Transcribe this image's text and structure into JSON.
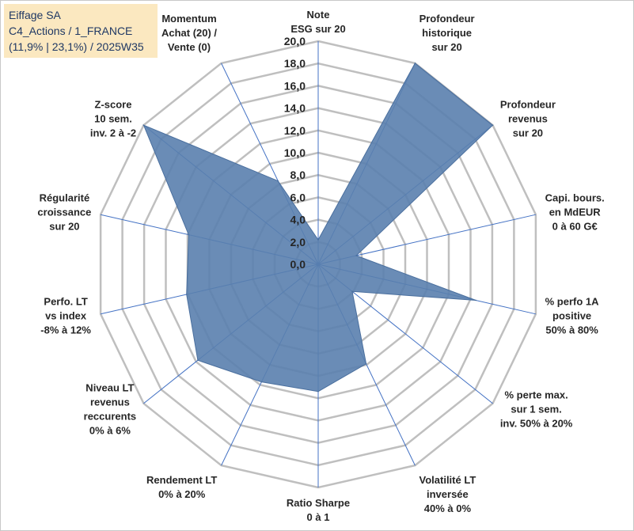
{
  "header": {
    "line1": "Eiffage SA",
    "line2": "C4_Actions / 1_FRANCE",
    "line3": "(11,9% | 23,1%) / 2025W35"
  },
  "chart_data": {
    "type": "radar",
    "rmin": 0,
    "rmax": 20,
    "tick_step": 2,
    "tick_labels": [
      "0,0",
      "2,0",
      "4,0",
      "6,0",
      "8,0",
      "10,0",
      "12,0",
      "14,0",
      "16,0",
      "18,0",
      "20,0"
    ],
    "grid": true,
    "colors": {
      "fill": "#5a7fae",
      "stroke": "#4a6f9e",
      "grid": "#bfbfbf",
      "spoke": "#4472c4"
    },
    "axes": [
      {
        "label": [
          "Note",
          "ESG sur 20"
        ],
        "value": 2.2
      },
      {
        "label": [
          "Profondeur",
          "historique",
          "sur 20"
        ],
        "value": 20.0
      },
      {
        "label": [
          "Profondeur",
          "revenus",
          "sur 20"
        ],
        "value": 20.0
      },
      {
        "label": [
          "Capi. bours.",
          "en MdEUR",
          "0 à 60 G€"
        ],
        "value": 3.5
      },
      {
        "label": [
          "% perfo 1A",
          "positive",
          "50% à 80%"
        ],
        "value": 14.5
      },
      {
        "label": [
          "% perte max.",
          "sur 1 sem.",
          "inv. 50% à 20%"
        ],
        "value": 3.9
      },
      {
        "label": [
          "Volatilité LT",
          "inversée",
          "40% à 0%"
        ],
        "value": 9.9
      },
      {
        "label": [
          "Ratio Sharpe",
          "0 à 1"
        ],
        "value": 11.4
      },
      {
        "label": [
          "Rendement LT",
          "0% à 20%"
        ],
        "value": 11.7
      },
      {
        "label": [
          "Niveau LT",
          "revenus",
          "reccurents",
          "0% à 6%"
        ],
        "value": 13.8
      },
      {
        "label": [
          "Perfo. LT",
          "vs index",
          "-8% à 12%"
        ],
        "value": 12.1
      },
      {
        "label": [
          "Régularité",
          "croissance",
          "sur 20"
        ],
        "value": 11.9
      },
      {
        "label": [
          "Z-score",
          "10 sem.",
          "inv. 2 à -2"
        ],
        "value": 20.0
      },
      {
        "label": [
          "Momentum",
          "Achat (20) /",
          "Vente (0)"
        ],
        "value": 8.3
      }
    ]
  }
}
